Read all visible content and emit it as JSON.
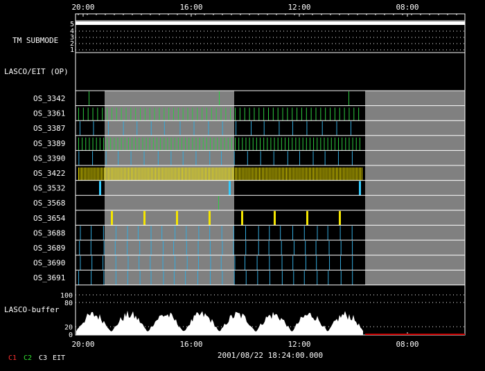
{
  "time_axis": {
    "top_labels": [
      "20:00",
      "16:00",
      "12:00",
      "08:00"
    ],
    "bottom_labels": [
      "20:00",
      "16:00",
      "12:00",
      "08:00"
    ]
  },
  "submode_panel": {
    "label": "TM SUBMODE",
    "levels": [
      "5",
      "4",
      "3",
      "2",
      "1"
    ],
    "current_level": 5
  },
  "lasco_eit_panel": {
    "label": "LASCO/EIT (OP)"
  },
  "rows": [
    {
      "label": "OS_3342",
      "color": "#2ecc40",
      "pattern": "sparse",
      "count": 3
    },
    {
      "label": "OS_3361",
      "color": "#2ecc40",
      "pattern": "dense_uniform",
      "count": 60
    },
    {
      "label": "OS_3387",
      "color": "#33aadd",
      "pattern": "regular",
      "count": 20
    },
    {
      "label": "OS_3389",
      "color": "#2ecc40",
      "pattern": "dense_uniform",
      "count": 80
    },
    {
      "label": "OS_3390",
      "color": "#33aadd",
      "pattern": "regular",
      "count": 22
    },
    {
      "label": "OS_3422",
      "color": "#f5e600",
      "pattern": "very_dense",
      "count": 200
    },
    {
      "label": "OS_3532",
      "color": "#33ccff",
      "pattern": "sparse_thick",
      "count": 3
    },
    {
      "label": "OS_3568",
      "color": "#2ecc40",
      "pattern": "single",
      "count": 1
    },
    {
      "label": "OS_3654",
      "color": "#f5e600",
      "pattern": "periodic_thick",
      "count": 8
    },
    {
      "label": "OS_3688",
      "color": "#33aadd",
      "pattern": "regular",
      "count": 24
    },
    {
      "label": "OS_3689",
      "color": "#33aadd",
      "pattern": "regular",
      "count": 24
    },
    {
      "label": "OS_3690",
      "color": "#33aadd",
      "pattern": "regular",
      "count": 24
    },
    {
      "label": "OS_3691",
      "color": "#33aadd",
      "pattern": "regular",
      "count": 24
    }
  ],
  "shading": {
    "color": "#808080",
    "note_fraction_ranges": [
      [
        0.074,
        0.408
      ],
      [
        0.744,
        1.0
      ]
    ]
  },
  "buffer_panel": {
    "label": "LASCO-buffer",
    "ticks": [
      "100",
      "80",
      "20",
      "0"
    ],
    "red_line_color": "#cc0000"
  },
  "timestamp": "2001/08/22 18:24:00.000",
  "legend": [
    {
      "text": "C1",
      "color": "#ff3030"
    },
    {
      "text": "C2",
      "color": "#30e030"
    },
    {
      "text": "C3",
      "color": "#ffffff"
    },
    {
      "text": "EIT",
      "color": "#ffffff"
    }
  ]
}
